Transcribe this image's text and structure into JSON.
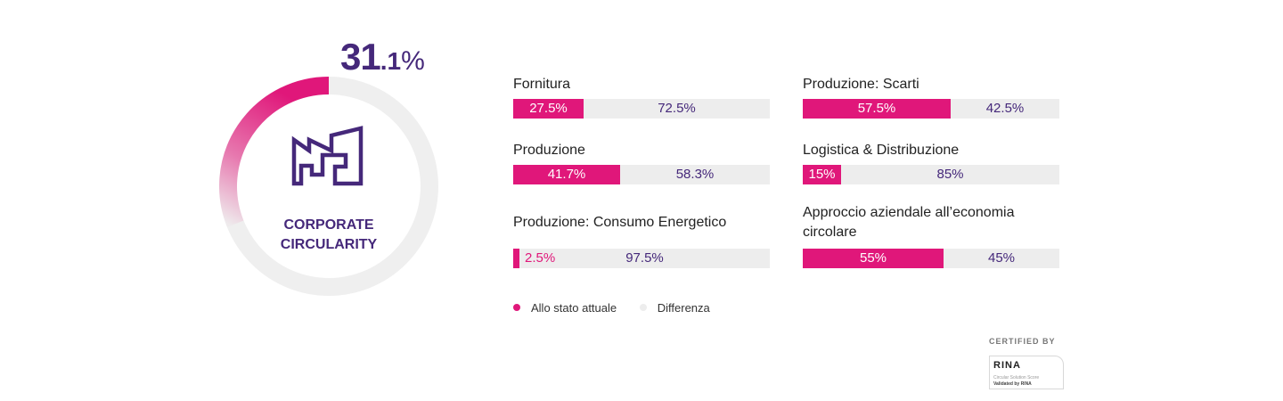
{
  "score": {
    "integer": "31",
    "decimal": ".1",
    "unit": "%",
    "value": 31.1
  },
  "donut": {
    "title_line1": "CORPORATE",
    "title_line2": "CIRCULARITY",
    "icon": "factory-icon"
  },
  "colors": {
    "accent": "#e0177a",
    "rest": "#ededed",
    "primary": "#45287a"
  },
  "chart_data": {
    "type": "bar",
    "orientation": "horizontal-stacked-100",
    "categories": [
      "Fornitura",
      "Produzione: Scarti",
      "Produzione",
      "Logistica & Distribuzione",
      "Produzione: Consumo Energetico",
      "Approccio aziendale all’economia circolare"
    ],
    "series": [
      {
        "name": "Allo stato attuale",
        "values": [
          27.5,
          57.5,
          41.7,
          15,
          2.5,
          55
        ]
      },
      {
        "name": "Differenza",
        "values": [
          72.5,
          42.5,
          58.3,
          85,
          97.5,
          45
        ]
      }
    ],
    "labels_a": [
      "27.5%",
      "57.5%",
      "41.7%",
      "15%",
      "2.5%",
      "55%"
    ],
    "labels_b": [
      "72.5%",
      "42.5%",
      "58.3%",
      "85%",
      "97.5%",
      "45%"
    ],
    "label_lines": [
      [
        "Fornitura"
      ],
      [
        "Produzione: Scarti"
      ],
      [
        "Produzione"
      ],
      [
        "Logistica & Distribuzione"
      ],
      [
        "Produzione: Consumo Energetico"
      ],
      [
        "Approccio aziendale all’economia",
        "circolare"
      ]
    ],
    "legend": {
      "items": [
        "Allo stato attuale",
        "Differenza"
      ],
      "placement": "bottom"
    }
  },
  "certificate": {
    "title": "CERTIFIED BY",
    "logo": "RINA",
    "line1": "Circular Solution Score",
    "line2": "Validated by RINA"
  }
}
